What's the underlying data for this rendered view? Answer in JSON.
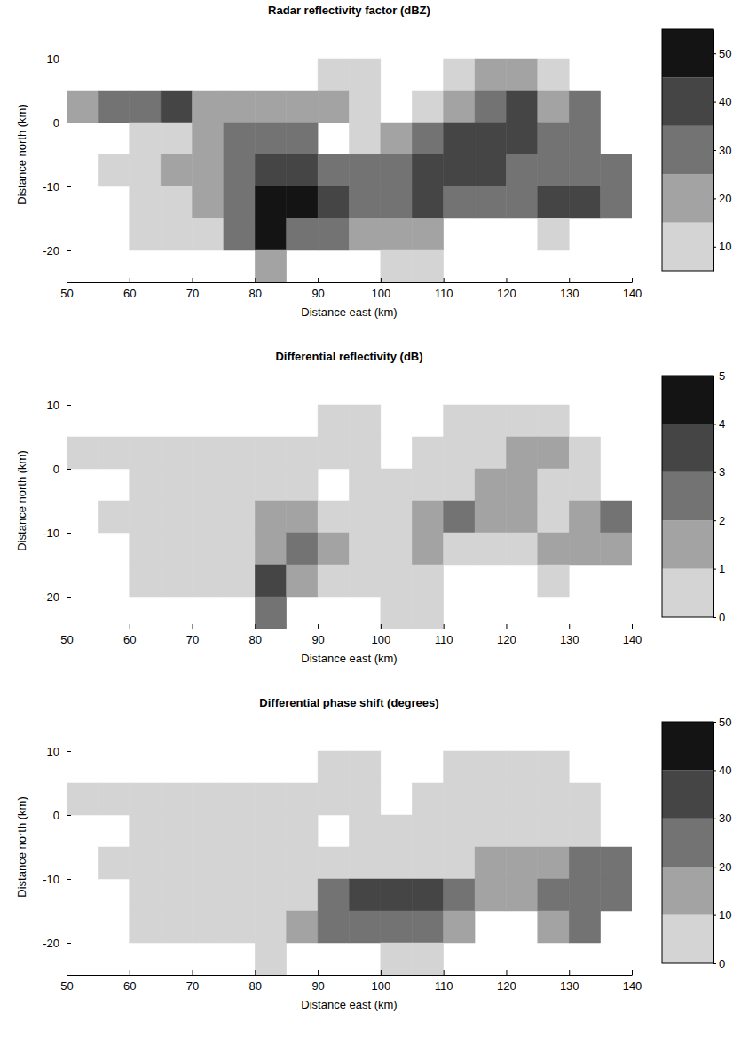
{
  "chart_data": [
    {
      "type": "heatmap",
      "title": "Radar reflectivity factor (dBZ)",
      "xlabel": "Distance east (km)",
      "ylabel": "Distance north (km)",
      "xlim": [
        50,
        140
      ],
      "ylim": [
        -25,
        15
      ],
      "xticks": [
        50,
        60,
        70,
        80,
        90,
        100,
        110,
        120,
        130,
        140
      ],
      "yticks": [
        -20,
        -10,
        0,
        10
      ],
      "x": [
        52.5,
        57.5,
        62.5,
        67.5,
        72.5,
        77.5,
        82.5,
        87.5,
        92.5,
        97.5,
        102.5,
        107.5,
        112.5,
        117.5,
        122.5,
        127.5,
        132.5,
        137.5
      ],
      "y": [
        12.5,
        7.5,
        2.5,
        -2.5,
        -7.5,
        -12.5,
        -17.5,
        -22.5
      ],
      "z": [
        [
          null,
          null,
          null,
          null,
          null,
          null,
          null,
          null,
          null,
          null,
          null,
          null,
          null,
          null,
          null,
          null,
          null,
          null
        ],
        [
          null,
          null,
          null,
          null,
          null,
          null,
          null,
          null,
          10,
          10,
          null,
          null,
          10,
          20,
          20,
          10,
          null,
          null
        ],
        [
          20,
          30,
          30,
          40,
          20,
          20,
          20,
          20,
          20,
          10,
          null,
          10,
          20,
          30,
          40,
          20,
          30,
          null
        ],
        [
          null,
          null,
          10,
          10,
          20,
          30,
          30,
          30,
          null,
          10,
          20,
          30,
          40,
          40,
          40,
          30,
          30,
          null
        ],
        [
          null,
          10,
          10,
          20,
          20,
          30,
          40,
          40,
          30,
          30,
          30,
          40,
          40,
          40,
          30,
          30,
          30,
          30
        ],
        [
          null,
          null,
          10,
          10,
          20,
          30,
          50,
          50,
          40,
          30,
          30,
          40,
          30,
          30,
          30,
          40,
          40,
          30
        ],
        [
          null,
          null,
          10,
          10,
          10,
          30,
          50,
          30,
          30,
          20,
          20,
          20,
          null,
          null,
          null,
          10,
          null,
          null
        ],
        [
          null,
          null,
          null,
          null,
          null,
          null,
          20,
          null,
          null,
          null,
          10,
          10,
          null,
          null,
          null,
          null,
          null,
          null
        ]
      ],
      "colorbar": {
        "range": [
          5,
          55
        ],
        "ticks": [
          10,
          20,
          30,
          40,
          50
        ],
        "colors": [
          "#d4d4d4",
          "#a3a3a3",
          "#737373",
          "#454545",
          "#141414"
        ]
      }
    },
    {
      "type": "heatmap",
      "title": "Differential reflectivity (dB)",
      "xlabel": "Distance east (km)",
      "ylabel": "Distance north (km)",
      "xlim": [
        50,
        140
      ],
      "ylim": [
        -25,
        15
      ],
      "xticks": [
        50,
        60,
        70,
        80,
        90,
        100,
        110,
        120,
        130,
        140
      ],
      "yticks": [
        -20,
        -10,
        0,
        10
      ],
      "x": [
        52.5,
        57.5,
        62.5,
        67.5,
        72.5,
        77.5,
        82.5,
        87.5,
        92.5,
        97.5,
        102.5,
        107.5,
        112.5,
        117.5,
        122.5,
        127.5,
        132.5,
        137.5
      ],
      "y": [
        12.5,
        7.5,
        2.5,
        -2.5,
        -7.5,
        -12.5,
        -17.5,
        -22.5
      ],
      "z": [
        [
          null,
          null,
          null,
          null,
          null,
          null,
          null,
          null,
          null,
          null,
          null,
          null,
          null,
          null,
          null,
          null,
          null,
          null
        ],
        [
          null,
          null,
          null,
          null,
          null,
          null,
          null,
          null,
          0.5,
          0.5,
          null,
          null,
          0.5,
          0.5,
          0.5,
          0.5,
          null,
          null
        ],
        [
          0.5,
          0.5,
          0.5,
          0.5,
          0.5,
          0.5,
          0.5,
          0.5,
          0.5,
          0.5,
          null,
          0.5,
          0.5,
          0.5,
          1.5,
          1.5,
          0.5,
          null
        ],
        [
          null,
          null,
          0.5,
          0.5,
          0.5,
          0.5,
          0.5,
          0.5,
          null,
          0.5,
          0.5,
          0.5,
          0.5,
          1.5,
          1.5,
          0.5,
          0.5,
          null
        ],
        [
          null,
          0.5,
          0.5,
          0.5,
          0.5,
          0.5,
          1.5,
          1.5,
          0.5,
          0.5,
          0.5,
          1.5,
          2.5,
          1.5,
          1.5,
          0.5,
          1.5,
          2.5
        ],
        [
          null,
          null,
          0.5,
          0.5,
          0.5,
          0.5,
          1.5,
          2.5,
          1.5,
          0.5,
          0.5,
          1.5,
          0.5,
          0.5,
          0.5,
          1.5,
          1.5,
          1.5
        ],
        [
          null,
          null,
          0.5,
          0.5,
          0.5,
          0.5,
          3.5,
          1.5,
          0.5,
          0.5,
          0.5,
          0.5,
          null,
          null,
          null,
          0.5,
          null,
          null
        ],
        [
          null,
          null,
          null,
          null,
          null,
          null,
          2.5,
          null,
          null,
          null,
          0.5,
          0.5,
          null,
          null,
          null,
          null,
          null,
          null
        ]
      ],
      "colorbar": {
        "range": [
          0,
          5
        ],
        "ticks": [
          0,
          1,
          2,
          3,
          4,
          5
        ],
        "colors": [
          "#d4d4d4",
          "#a3a3a3",
          "#737373",
          "#454545",
          "#141414"
        ]
      }
    },
    {
      "type": "heatmap",
      "title": "Differential phase shift (degrees)",
      "xlabel": "Distance east (km)",
      "ylabel": "Distance north (km)",
      "xlim": [
        50,
        140
      ],
      "ylim": [
        -25,
        15
      ],
      "xticks": [
        50,
        60,
        70,
        80,
        90,
        100,
        110,
        120,
        130,
        140
      ],
      "yticks": [
        -20,
        -10,
        0,
        10
      ],
      "x": [
        52.5,
        57.5,
        62.5,
        67.5,
        72.5,
        77.5,
        82.5,
        87.5,
        92.5,
        97.5,
        102.5,
        107.5,
        112.5,
        117.5,
        122.5,
        127.5,
        132.5,
        137.5
      ],
      "y": [
        12.5,
        7.5,
        2.5,
        -2.5,
        -7.5,
        -12.5,
        -17.5,
        -22.5
      ],
      "z": [
        [
          null,
          null,
          null,
          null,
          null,
          null,
          null,
          null,
          null,
          null,
          null,
          null,
          null,
          null,
          null,
          null,
          null,
          null
        ],
        [
          null,
          null,
          null,
          null,
          null,
          null,
          null,
          null,
          5,
          5,
          null,
          null,
          5,
          5,
          5,
          5,
          null,
          null
        ],
        [
          5,
          5,
          5,
          5,
          5,
          5,
          5,
          5,
          5,
          5,
          null,
          5,
          5,
          5,
          5,
          5,
          5,
          null
        ],
        [
          null,
          null,
          5,
          5,
          5,
          5,
          5,
          5,
          null,
          5,
          5,
          5,
          5,
          5,
          5,
          5,
          5,
          null
        ],
        [
          null,
          5,
          5,
          5,
          5,
          5,
          5,
          5,
          5,
          5,
          5,
          5,
          5,
          15,
          15,
          15,
          25,
          25
        ],
        [
          null,
          null,
          5,
          5,
          5,
          5,
          5,
          5,
          25,
          35,
          35,
          35,
          25,
          15,
          15,
          25,
          25,
          25
        ],
        [
          null,
          null,
          5,
          5,
          5,
          5,
          5,
          15,
          25,
          25,
          25,
          25,
          15,
          null,
          null,
          15,
          25,
          null
        ],
        [
          null,
          null,
          null,
          null,
          null,
          null,
          5,
          null,
          null,
          null,
          5,
          5,
          null,
          null,
          null,
          null,
          null,
          null
        ]
      ],
      "colorbar": {
        "range": [
          0,
          50
        ],
        "ticks": [
          0,
          10,
          20,
          30,
          40,
          50
        ],
        "colors": [
          "#d4d4d4",
          "#a3a3a3",
          "#737373",
          "#454545",
          "#141414"
        ]
      }
    }
  ]
}
